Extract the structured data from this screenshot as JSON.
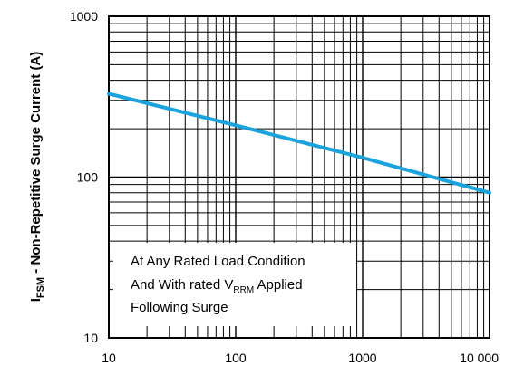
{
  "chart_data": {
    "type": "line",
    "x_scale": "log",
    "y_scale": "log",
    "xlim": [
      10,
      10000
    ],
    "ylim": [
      10,
      1000
    ],
    "grid": true,
    "xticks": [
      "10",
      "100",
      "1000",
      "10 000"
    ],
    "yticks": [
      "10",
      "100",
      "1000"
    ],
    "ylabel": {
      "main": "I",
      "sub": "FSM",
      "rest": " - Non-Repetitive Surge Current (A)"
    },
    "xlabel": "",
    "title": "",
    "annotation": {
      "line1": "At Any Rated Load Condition",
      "line2_prefix": "And With rated V",
      "line2_sub": "RRM",
      "line2_suffix": " Applied",
      "line3": "Following Surge"
    },
    "series": [
      {
        "color": "#1aa3dc",
        "points": [
          {
            "x": 10,
            "y": 330
          },
          {
            "x": 100,
            "y": 210
          },
          {
            "x": 1000,
            "y": 132
          },
          {
            "x": 10000,
            "y": 80
          }
        ]
      }
    ]
  }
}
